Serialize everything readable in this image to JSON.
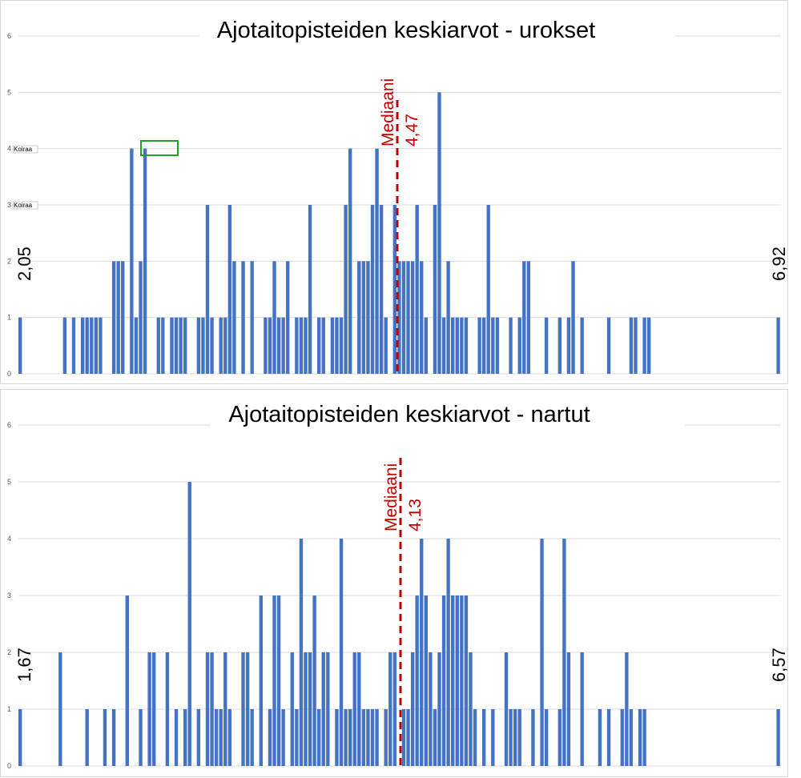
{
  "chart_data": [
    {
      "type": "bar",
      "title": "Ajotaitopisteiden keskiarvot - urokset",
      "ylim": [
        0,
        6
      ],
      "yticks": [
        "0",
        "1",
        "2",
        "3",
        "4",
        "5",
        "6"
      ],
      "grid": true,
      "values": [
        1,
        0,
        0,
        0,
        0,
        0,
        0,
        0,
        0,
        0,
        1,
        0,
        1,
        0,
        1,
        1,
        1,
        1,
        1,
        0,
        0,
        2,
        2,
        2,
        0,
        4,
        1,
        2,
        4,
        0,
        0,
        1,
        1,
        0,
        1,
        1,
        1,
        1,
        0,
        0,
        1,
        1,
        3,
        1,
        0,
        1,
        1,
        3,
        2,
        0,
        2,
        0,
        2,
        0,
        0,
        1,
        1,
        2,
        1,
        1,
        2,
        0,
        1,
        1,
        1,
        3,
        0,
        1,
        1,
        0,
        1,
        1,
        1,
        3,
        4,
        0,
        2,
        2,
        2,
        3,
        4,
        3,
        1,
        0,
        3,
        2,
        2,
        2,
        2,
        3,
        2,
        1,
        0,
        3,
        5,
        1,
        2,
        1,
        1,
        1,
        1,
        0,
        0,
        1,
        1,
        3,
        1,
        1,
        0,
        0,
        1,
        0,
        1,
        2,
        2,
        0,
        0,
        0,
        1,
        0,
        0,
        1,
        0,
        1,
        2,
        0,
        1,
        0,
        0,
        0,
        0,
        0,
        1,
        0,
        0,
        0,
        0,
        1,
        1,
        0,
        1,
        1,
        0,
        0,
        0,
        0,
        0,
        0,
        0,
        0,
        0,
        0,
        0,
        0,
        0,
        0,
        0,
        0,
        0,
        0,
        0,
        0,
        0,
        0,
        0,
        0,
        0,
        0,
        0,
        0,
        1
      ],
      "median_label": "Mediaani",
      "median_value": "4,47",
      "range_min": "2,05",
      "range_max": "6,92",
      "annotations": [
        "Koiraa",
        "Koiraa"
      ]
    },
    {
      "type": "bar",
      "title": "Ajotaitopisteiden keskiarvot - nartut",
      "ylim": [
        0,
        6
      ],
      "yticks": [
        "0",
        "1",
        "2",
        "3",
        "4",
        "5",
        "6"
      ],
      "grid": true,
      "values": [
        1,
        0,
        0,
        0,
        0,
        0,
        0,
        0,
        0,
        2,
        0,
        0,
        0,
        0,
        0,
        1,
        0,
        0,
        0,
        1,
        0,
        1,
        0,
        0,
        3,
        0,
        0,
        1,
        0,
        2,
        2,
        0,
        0,
        2,
        0,
        1,
        0,
        1,
        5,
        0,
        1,
        0,
        2,
        2,
        1,
        1,
        2,
        1,
        0,
        0,
        2,
        2,
        1,
        0,
        3,
        0,
        1,
        3,
        3,
        1,
        0,
        2,
        1,
        4,
        2,
        2,
        3,
        1,
        2,
        2,
        0,
        1,
        4,
        1,
        1,
        2,
        2,
        1,
        1,
        1,
        1,
        0,
        1,
        2,
        2,
        0,
        1,
        1,
        2,
        3,
        4,
        3,
        2,
        1,
        2,
        3,
        4,
        3,
        3,
        3,
        3,
        2,
        1,
        0,
        1,
        0,
        1,
        0,
        0,
        2,
        1,
        1,
        1,
        0,
        0,
        1,
        0,
        4,
        1,
        0,
        0,
        1,
        4,
        2,
        0,
        0,
        2,
        0,
        0,
        0,
        1,
        0,
        1,
        0,
        0,
        1,
        2,
        1,
        0,
        1,
        1,
        0,
        0,
        0,
        0,
        0,
        0,
        0,
        0,
        0,
        0,
        0,
        0,
        0,
        0,
        0,
        0,
        0,
        0,
        0,
        0,
        0,
        0,
        0,
        0,
        0,
        0,
        0,
        0,
        0,
        1
      ],
      "median_label": "Mediaani",
      "median_value": "4,13",
      "range_min": "1,67",
      "range_max": "6,57"
    }
  ],
  "colors": {
    "bar": "#4472c4",
    "median": "#c00000",
    "grid": "#d9d9d9",
    "highlight_box": "#22a02a"
  }
}
